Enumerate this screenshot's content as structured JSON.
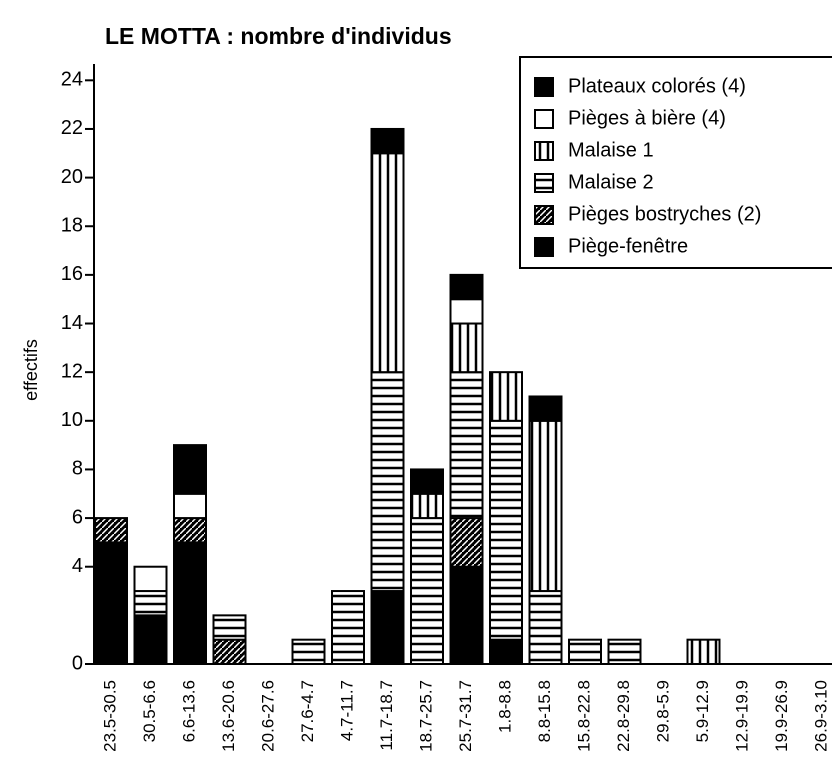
{
  "chart_data": {
    "type": "stacked_bar",
    "title": "LE MOTTA : nombre d'individus",
    "y_label": "effectifs",
    "categories": [
      "23.5-30.5",
      "30.5-6.6",
      "6.6-13.6",
      "13.6-20.6",
      "20.6-27.6",
      "27.6-4.7",
      "4.7-11.7",
      "11.7-18.7",
      "18.7-25.7",
      "25.7-31.7",
      "1.8-8.8",
      "8.8-15.8",
      "15.8-22.8",
      "22.8-29.8",
      "29.8-5.9",
      "5.9-12.9",
      "12.9-19.9",
      "19.9-26.9",
      "26.9-3.10"
    ],
    "series": [
      {
        "name": "Plateaux colorés (4)",
        "color": "#000000",
        "fill": "solid",
        "values": [
          5,
          2,
          5,
          0,
          0,
          0,
          0,
          3,
          0,
          4,
          1,
          0,
          0,
          0,
          0,
          0,
          0,
          0,
          0
        ]
      },
      {
        "name": "Pièges à bière (4)",
        "color": "#000000",
        "fill": "empty",
        "values": [
          0,
          1,
          1,
          0,
          0,
          0,
          0,
          0,
          0,
          1,
          0,
          0,
          0,
          0,
          0,
          0,
          0,
          0,
          0
        ]
      },
      {
        "name": "Malaise 1",
        "color": "#000000",
        "fill": "vertical",
        "values": [
          0,
          0,
          0,
          0,
          0,
          0,
          0,
          9,
          1,
          2,
          2,
          7,
          0,
          0,
          0,
          1,
          0,
          0,
          0
        ]
      },
      {
        "name": "Malaise 2",
        "color": "#000000",
        "fill": "horizontal",
        "values": [
          0,
          1,
          0,
          1,
          0,
          1,
          3,
          9,
          6,
          6,
          9,
          3,
          1,
          1,
          0,
          0,
          0,
          0,
          0
        ]
      },
      {
        "name": "Pièges bostryches (2)",
        "color": "#000000",
        "fill": "hatch",
        "values": [
          1,
          0,
          1,
          1,
          0,
          0,
          0,
          0,
          0,
          2,
          0,
          0,
          0,
          0,
          0,
          0,
          0,
          0,
          0
        ]
      },
      {
        "name": "Piège-fenêtre",
        "color": "#000000",
        "fill": "solid",
        "values": [
          0,
          0,
          2,
          0,
          0,
          0,
          0,
          1,
          1,
          1,
          0,
          1,
          0,
          0,
          0,
          0,
          0,
          0,
          0
        ]
      }
    ],
    "stack_order": [
      0,
      4,
      3,
      2,
      1,
      5
    ],
    "ylim": [
      0,
      25
    ],
    "yticks": [
      0,
      4,
      6,
      8,
      10,
      12,
      14,
      16,
      18,
      20,
      22,
      24
    ],
    "legend": "upper right"
  }
}
